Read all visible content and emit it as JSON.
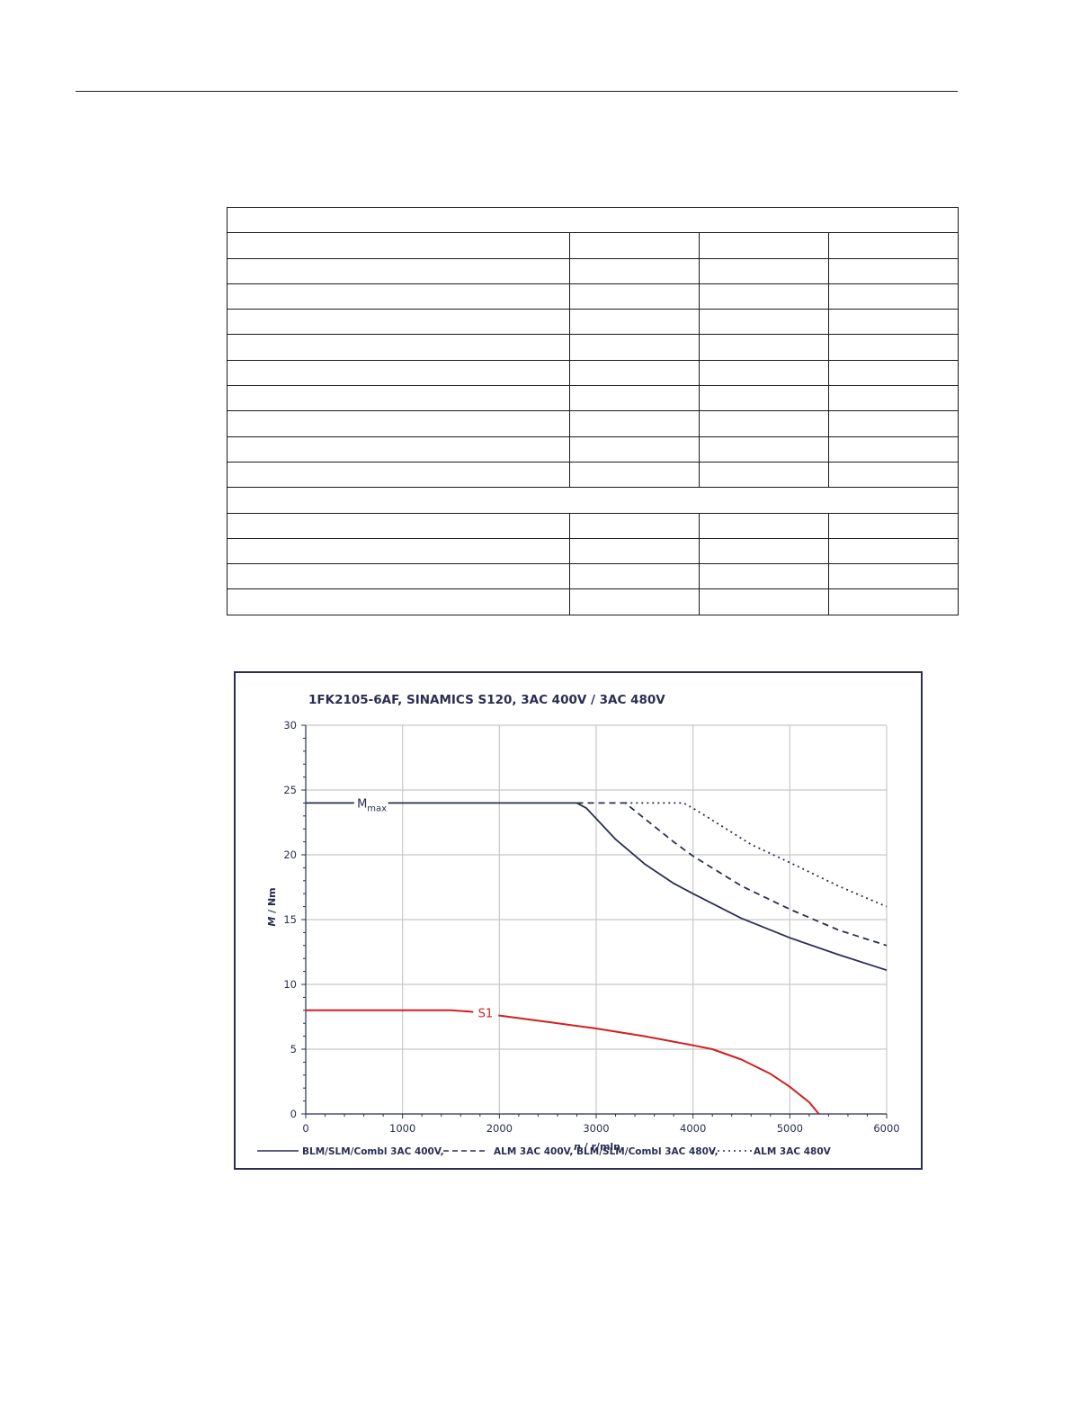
{
  "table": {
    "rows": [
      {
        "merged": true
      },
      {
        "merged": false
      },
      {
        "merged": false
      },
      {
        "merged": false
      },
      {
        "merged": false
      },
      {
        "merged": false
      },
      {
        "merged": false
      },
      {
        "merged": false
      },
      {
        "merged": false
      },
      {
        "merged": false
      },
      {
        "merged": false
      },
      {
        "merged": true
      },
      {
        "merged": false
      },
      {
        "merged": false
      },
      {
        "merged": false
      },
      {
        "merged": false
      }
    ]
  },
  "chart_data": {
    "type": "line",
    "title": "1FK2105-6AF,  SINAMICS S120,  3AC 400V / 3AC 480V",
    "xlabel_var": "n",
    "xlabel_unit": " / r/mln",
    "ylabel_var": "M",
    "ylabel_unit": " / Nm",
    "xlim": [
      0,
      6000
    ],
    "ylim": [
      0,
      30
    ],
    "xticks": [
      0,
      1000,
      2000,
      3000,
      4000,
      5000,
      6000
    ],
    "yticks": [
      0,
      5,
      10,
      15,
      20,
      25,
      30
    ],
    "grid": true,
    "colors": {
      "axis": "#2a2f52",
      "grid": "#c8c8c8",
      "s1": "#d21f1f"
    },
    "annotations": {
      "mmax_main": "M",
      "mmax_sub": "max",
      "s1": "S1"
    },
    "series": [
      {
        "legend": "BLM/SLM/Combl 3AC 400V,",
        "style": "solid",
        "color": "#2a2f52",
        "points": [
          [
            0,
            24
          ],
          [
            2800,
            24
          ],
          [
            2900,
            23.6
          ],
          [
            3000,
            22.8
          ],
          [
            3200,
            21.2
          ],
          [
            3500,
            19.3
          ],
          [
            3800,
            17.8
          ],
          [
            4000,
            17.0
          ],
          [
            4500,
            15.1
          ],
          [
            5000,
            13.6
          ],
          [
            5500,
            12.3
          ],
          [
            6000,
            11.1
          ]
        ]
      },
      {
        "legend": "ALM 3AC 400V, BLM/SLM/Combl 3AC 480V,",
        "style": "dashed",
        "color": "#2a2f52",
        "points": [
          [
            2800,
            24
          ],
          [
            3300,
            24
          ],
          [
            3500,
            22.8
          ],
          [
            3800,
            21.0
          ],
          [
            4000,
            19.9
          ],
          [
            4500,
            17.6
          ],
          [
            5000,
            15.8
          ],
          [
            5500,
            14.2
          ],
          [
            6000,
            13.0
          ]
        ]
      },
      {
        "legend": "ALM 3AC 480V",
        "style": "dotted",
        "color": "#2a2f52",
        "points": [
          [
            3300,
            24
          ],
          [
            3900,
            24
          ],
          [
            4000,
            23.6
          ],
          [
            4300,
            22.2
          ],
          [
            4600,
            20.8
          ],
          [
            5000,
            19.4
          ],
          [
            5500,
            17.6
          ],
          [
            6000,
            16.0
          ]
        ]
      },
      {
        "name": "S1",
        "style": "solid",
        "color": "#d21f1f",
        "points": [
          [
            0,
            8.0
          ],
          [
            1500,
            8.0
          ],
          [
            1700,
            7.9
          ],
          [
            2000,
            7.6
          ],
          [
            2500,
            7.1
          ],
          [
            3000,
            6.6
          ],
          [
            3500,
            6.0
          ],
          [
            4000,
            5.3
          ],
          [
            4200,
            5.0
          ],
          [
            4500,
            4.2
          ],
          [
            4800,
            3.1
          ],
          [
            5000,
            2.1
          ],
          [
            5200,
            0.9
          ],
          [
            5300,
            0.0
          ]
        ]
      }
    ]
  }
}
